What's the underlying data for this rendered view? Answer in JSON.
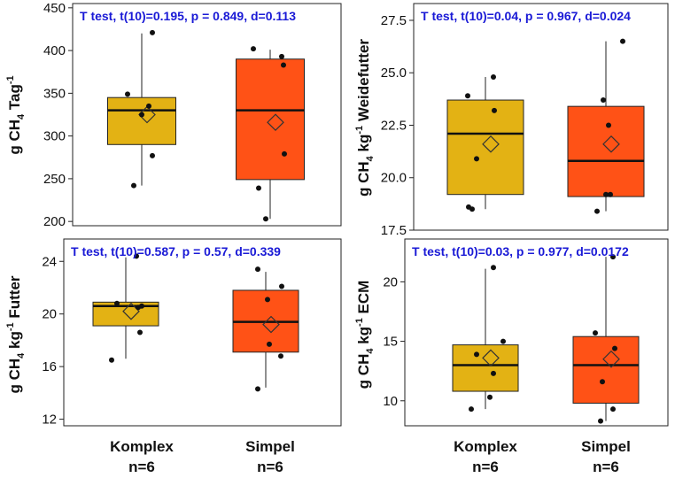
{
  "colors": {
    "komplex": "#E3B214",
    "simpel": "#FF5216",
    "stats_text": "#1A1AD6"
  },
  "categories": [
    "Komplex",
    "Simpel"
  ],
  "x_labels": [
    {
      "name": "Komplex",
      "n": "n=6"
    },
    {
      "name": "Simpel",
      "n": "n=6"
    }
  ],
  "chart_data": [
    {
      "type": "box",
      "annotation": "T test, t(10)=0.195, p = 0.849, d=0.113",
      "ylabel": {
        "base": "g CH",
        "sub": "4",
        "mid": " Tag",
        "sup": "-1",
        "tail": ""
      },
      "ylim": [
        195,
        455
      ],
      "yticks": [
        200,
        250,
        300,
        350,
        400,
        450
      ],
      "ytick_labels": [
        "200",
        "250",
        "300",
        "350",
        "400",
        "450"
      ],
      "boxes": [
        {
          "category": "Komplex",
          "min": 242,
          "q1": 290,
          "median": 330,
          "q3": 345,
          "max": 420,
          "mean": 325,
          "points": [
            242,
            277,
            325,
            335,
            349,
            421
          ]
        },
        {
          "category": "Simpel",
          "min": 203,
          "q1": 249,
          "median": 330,
          "q3": 390,
          "max": 401,
          "mean": 316,
          "points": [
            203,
            239,
            279,
            383,
            393,
            402
          ]
        }
      ]
    },
    {
      "type": "box",
      "annotation": "T test, t(10)=0.04, p = 0.967, d=0.024",
      "ylabel": {
        "base": "g CH",
        "sub": "4",
        "mid": " kg",
        "sup": "-1",
        "tail": " Weidefutter"
      },
      "ylim": [
        17.5,
        28.3
      ],
      "yticks": [
        17.5,
        20.0,
        22.5,
        25.0,
        27.5
      ],
      "ytick_labels": [
        "17.5",
        "20.0",
        "22.5",
        "25.0",
        "27.5"
      ],
      "boxes": [
        {
          "category": "Komplex",
          "min": 18.5,
          "q1": 19.2,
          "median": 22.1,
          "q3": 23.7,
          "max": 24.8,
          "mean": 21.6,
          "points": [
            18.5,
            18.6,
            20.9,
            23.2,
            23.9,
            24.8
          ]
        },
        {
          "category": "Simpel",
          "min": 18.4,
          "q1": 19.1,
          "median": 20.8,
          "q3": 23.4,
          "max": 26.5,
          "mean": 21.6,
          "points": [
            18.4,
            19.2,
            19.2,
            22.5,
            23.7,
            26.5
          ]
        }
      ]
    },
    {
      "type": "box",
      "annotation": "T test, t(10)=0.587, p = 0.57, d=0.339",
      "ylabel": {
        "base": "g CH",
        "sub": "4",
        "mid": " kg",
        "sup": "-1",
        "tail": " Futter"
      },
      "ylim": [
        11.5,
        25.7
      ],
      "yticks": [
        12,
        16,
        20,
        24
      ],
      "ytick_labels": [
        "12",
        "16",
        "20",
        "24"
      ],
      "boxes": [
        {
          "category": "Komplex",
          "min": 16.6,
          "q1": 19.1,
          "median": 20.6,
          "q3": 20.9,
          "max": 24.3,
          "mean": 20.2,
          "points": [
            16.5,
            18.6,
            20.5,
            20.6,
            20.8,
            24.4
          ]
        },
        {
          "category": "Simpel",
          "min": 14.4,
          "q1": 17.1,
          "median": 19.4,
          "q3": 21.8,
          "max": 23.2,
          "mean": 19.2,
          "points": [
            14.3,
            16.8,
            17.7,
            21.1,
            22.1,
            23.4
          ]
        }
      ]
    },
    {
      "type": "box",
      "annotation": "T test, t(10)=0.03, p = 0.977, d=0.0172",
      "ylabel": {
        "base": "g CH",
        "sub": "4",
        "mid": " kg",
        "sup": "-1",
        "tail": " ECM"
      },
      "ylim": [
        7.9,
        23.6
      ],
      "yticks": [
        10,
        15,
        20
      ],
      "ytick_labels": [
        "10",
        "15",
        "20"
      ],
      "boxes": [
        {
          "category": "Komplex",
          "min": 9.3,
          "q1": 10.8,
          "median": 13.0,
          "q3": 14.7,
          "max": 21.1,
          "mean": 13.6,
          "points": [
            9.3,
            10.3,
            12.3,
            13.9,
            15.0,
            21.2
          ]
        },
        {
          "category": "Simpel",
          "min": 8.3,
          "q1": 9.8,
          "median": 13.0,
          "q3": 15.4,
          "max": 22.1,
          "mean": 13.5,
          "points": [
            8.3,
            9.3,
            11.6,
            14.4,
            15.7,
            22.1
          ]
        }
      ]
    }
  ]
}
